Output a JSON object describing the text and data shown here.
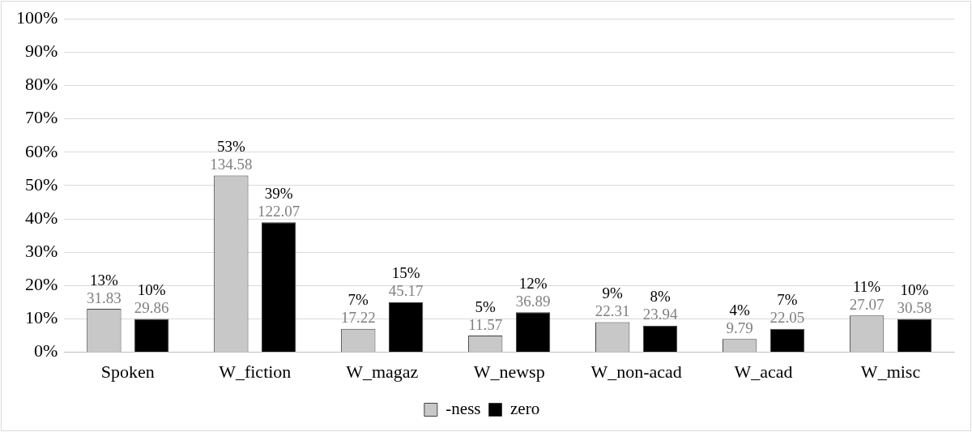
{
  "chart_data": {
    "type": "bar",
    "categories": [
      "Spoken",
      "W_fiction",
      "W_magaz",
      "W_newsp",
      "W_non-acad",
      "W_acad",
      "W_misc"
    ],
    "series": [
      {
        "name": "-ness",
        "color": "#c8c8c8",
        "values": [
          13,
          53,
          7,
          5,
          9,
          4,
          11
        ],
        "value_labels": [
          "13%",
          "53%",
          "7%",
          "5%",
          "9%",
          "4%",
          "11%"
        ]
      },
      {
        "name": "zero",
        "color": "#000000",
        "values": [
          10,
          39,
          15,
          12,
          8,
          7,
          10
        ],
        "value_labels": [
          "10%",
          "39%",
          "15%",
          "12%",
          "8%",
          "7%",
          "10%"
        ]
      }
    ],
    "annotations": [
      "31.83",
      "134.58",
      "17.22",
      "11.57",
      "22.31",
      "9.79",
      "27.07",
      "29.86",
      "122.07",
      "45.17",
      "36.89",
      "23.94",
      "22.05",
      "30.58"
    ],
    "ylim": [
      0,
      100
    ],
    "yticks": [
      {
        "value": 0,
        "label": "0%"
      },
      {
        "value": 10,
        "label": "10%"
      },
      {
        "value": 20,
        "label": "20%"
      },
      {
        "value": 30,
        "label": "30%"
      },
      {
        "value": 40,
        "label": "40%"
      },
      {
        "value": 50,
        "label": "50%"
      },
      {
        "value": 60,
        "label": "60%"
      },
      {
        "value": 70,
        "label": "70%"
      },
      {
        "value": 80,
        "label": "80%"
      },
      {
        "value": 90,
        "label": "90%"
      },
      {
        "value": 100,
        "label": "100%"
      }
    ],
    "grid": "y",
    "legend": "bottom"
  }
}
